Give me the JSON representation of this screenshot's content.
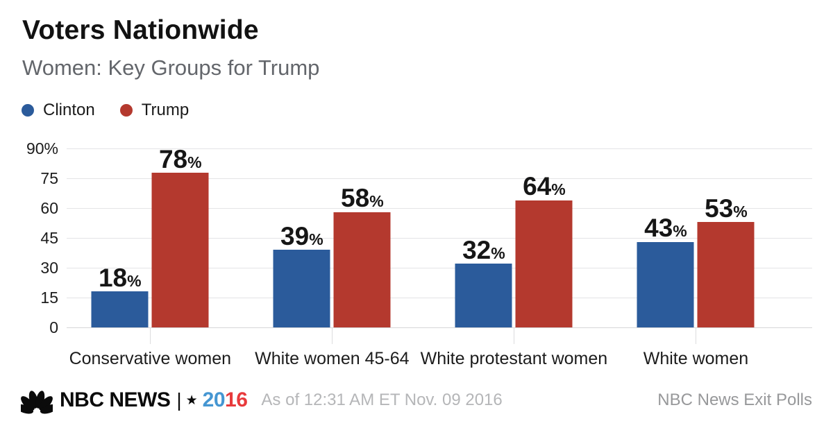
{
  "header": {
    "title": "Voters Nationwide",
    "subtitle": "Women: Key Groups for Trump"
  },
  "chart_data": {
    "type": "bar",
    "title": "Voters Nationwide",
    "subtitle": "Women: Key Groups for Trump",
    "categories": [
      "Conservative women",
      "White women 45-64",
      "White protestant women",
      "White women"
    ],
    "series": [
      {
        "name": "Clinton",
        "color": "#2b5b9b",
        "values": [
          18,
          39,
          32,
          43
        ]
      },
      {
        "name": "Trump",
        "color": "#b4392e",
        "values": [
          78,
          58,
          64,
          53
        ]
      }
    ],
    "value_suffix": "%",
    "ylim": [
      0,
      90
    ],
    "yticks": [
      {
        "value": 90,
        "label": "90%"
      },
      {
        "value": 75,
        "label": "75"
      },
      {
        "value": 60,
        "label": "60"
      },
      {
        "value": 45,
        "label": "45"
      },
      {
        "value": 30,
        "label": "30"
      },
      {
        "value": 15,
        "label": "15"
      },
      {
        "value": 0,
        "label": "0"
      }
    ],
    "grid": "horizontal",
    "legend_position": "top-left"
  },
  "footer": {
    "brand": "NBC NEWS",
    "separator": "|",
    "star": "★",
    "year_blue": "20",
    "year_red": "16",
    "year_blue_color": "#4596d2",
    "year_red_color": "#e83a3c",
    "as_of": "As of 12:31 AM ET Nov. 09 2016",
    "source": "NBC News Exit Polls"
  }
}
